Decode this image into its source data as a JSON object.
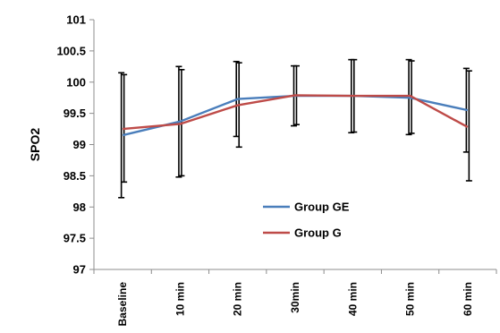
{
  "chart_data": {
    "type": "line",
    "ylabel": "SPO2",
    "xlabel": "",
    "ylim": [
      97,
      101
    ],
    "yticks": [
      "97",
      "97.5",
      "98",
      "98.5",
      "99",
      "99.5",
      "100",
      "100.5",
      "101"
    ],
    "categories": [
      "Baseline",
      "10 min",
      "20 min",
      "30min",
      "40 min",
      "50 min",
      "60 min"
    ],
    "grid": false,
    "legend_position": "center",
    "series": [
      {
        "name": "Group GE",
        "color": "#4a7ebb",
        "values": [
          99.15,
          99.37,
          99.73,
          99.78,
          99.78,
          99.75,
          99.55
        ],
        "error_low": [
          98.15,
          98.48,
          99.13,
          99.3,
          99.19,
          99.16,
          98.88
        ],
        "error_high": [
          100.15,
          100.25,
          100.33,
          100.26,
          100.36,
          100.36,
          100.22
        ]
      },
      {
        "name": "Group G",
        "color": "#be4b48",
        "values": [
          99.25,
          99.33,
          99.63,
          99.79,
          99.78,
          99.78,
          99.28
        ],
        "error_low": [
          98.4,
          98.5,
          98.96,
          99.32,
          99.2,
          99.18,
          98.42
        ],
        "error_high": [
          100.12,
          100.2,
          100.31,
          100.26,
          100.36,
          100.34,
          100.18
        ]
      }
    ]
  }
}
